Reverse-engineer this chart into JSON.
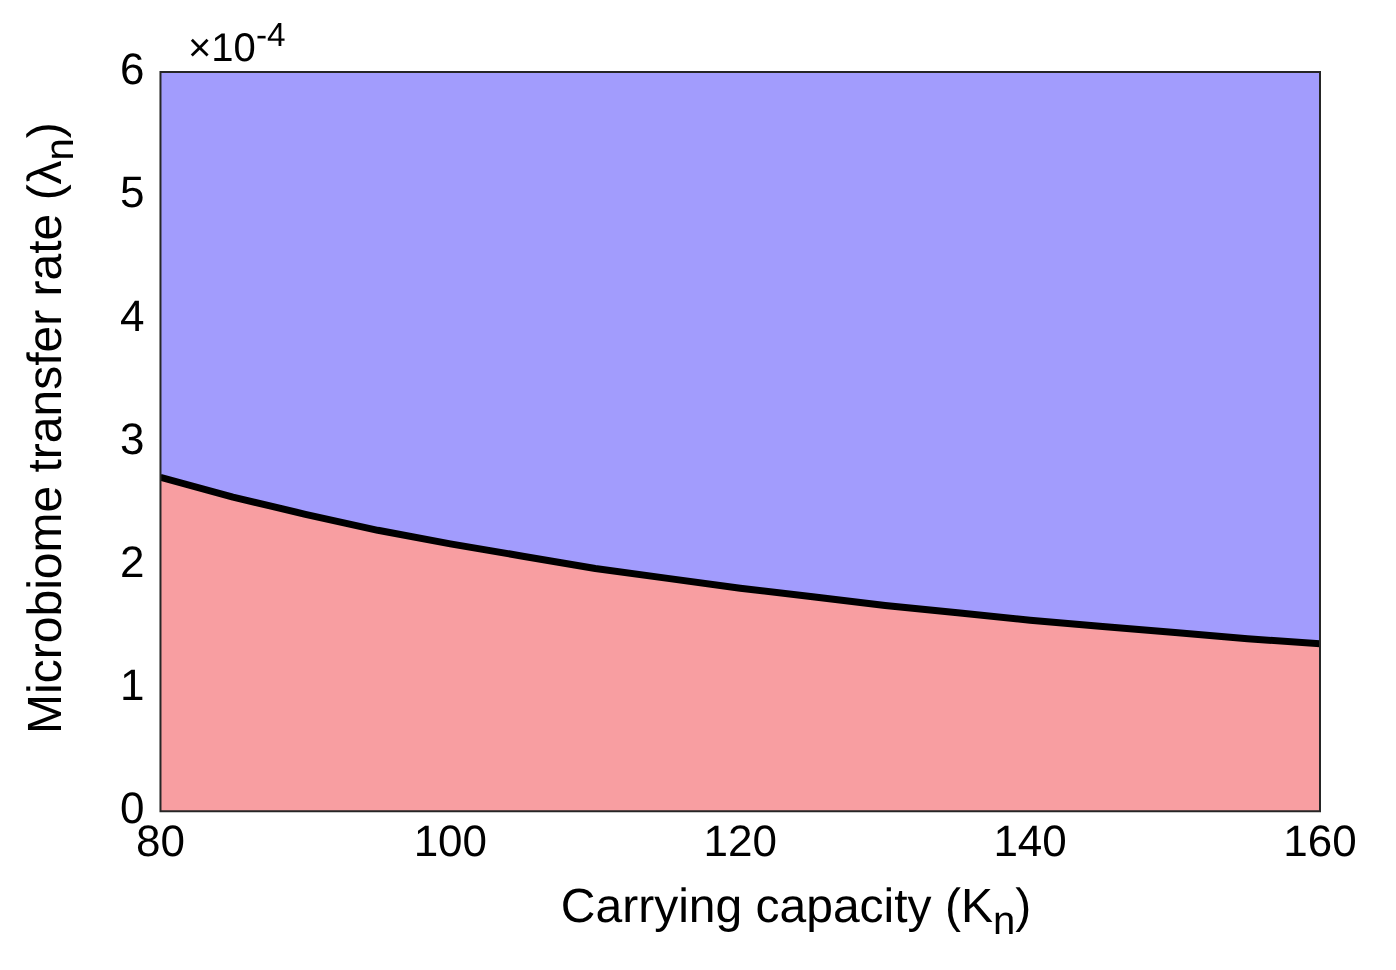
{
  "chart_data": {
    "type": "area",
    "xlabel": "Carrying capacity (K$_{n}$)",
    "ylabel": "Microbiome transfer rate (λ$_{n}$)",
    "annotations": [
      "×10$^{-4}$"
    ],
    "x": [
      80,
      85,
      90,
      95,
      100,
      105,
      110,
      115,
      120,
      125,
      130,
      135,
      140,
      145,
      150,
      155,
      160
    ],
    "series": [
      {
        "color": "#f89ea1",
        "values": [
          2.71,
          2.55,
          2.41,
          2.28,
          2.17,
          2.07,
          1.97,
          1.89,
          1.81,
          1.74,
          1.67,
          1.61,
          1.55,
          1.5,
          1.45,
          1.4,
          1.36
        ]
      }
    ],
    "bands": [
      {
        "axis": "y",
        "from": 0,
        "to": 6,
        "color": "#a29cfd"
      }
    ],
    "xlim": [
      80,
      160
    ],
    "xticks": [
      80,
      100,
      120,
      140,
      160
    ],
    "ylim": [
      0,
      6
    ],
    "yticks": [
      0,
      1,
      2,
      3,
      4,
      5,
      6
    ],
    "grid": false,
    "legend": false
  }
}
